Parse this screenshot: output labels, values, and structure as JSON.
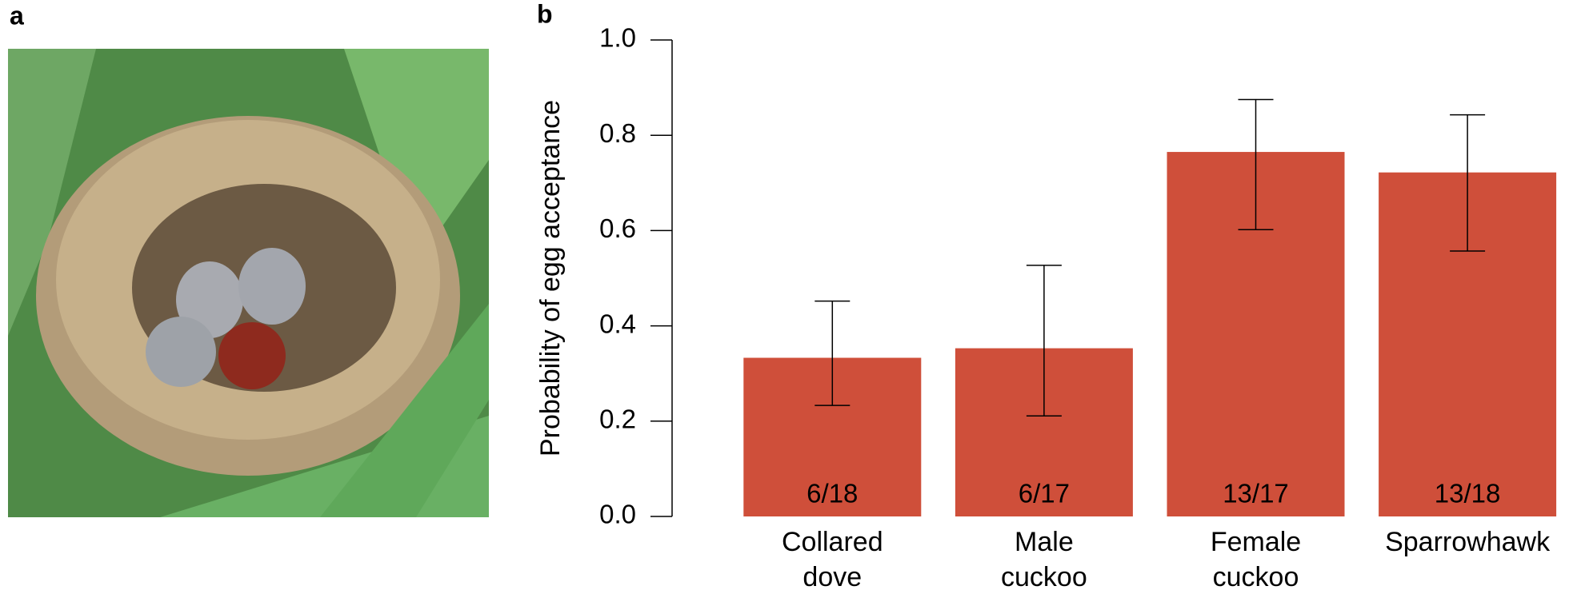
{
  "panel_a_label": "a",
  "chart_data": {
    "type": "bar",
    "panel_label": "b",
    "ylabel": "Probability of egg acceptance",
    "categories": [
      "Collared dove",
      "Male cuckoo",
      "Female cuckoo",
      "Sparrowhawk"
    ],
    "values": [
      0.333,
      0.353,
      0.765,
      0.722
    ],
    "value_labels": [
      "6/18",
      "6/17",
      "13/17",
      "13/18"
    ],
    "error_lower": [
      0.233,
      0.211,
      0.602,
      0.557
    ],
    "error_upper": [
      0.452,
      0.527,
      0.875,
      0.843
    ],
    "color": "#cf4f3a",
    "ylim": [
      0,
      1.0
    ],
    "yticks": [
      {
        "value": 0,
        "label": "0.0"
      },
      {
        "value": 0.2,
        "label": "0.2"
      },
      {
        "value": 0.4,
        "label": "0.4"
      },
      {
        "value": 0.6,
        "label": "0.6"
      },
      {
        "value": 0.8,
        "label": "0.8"
      },
      {
        "value": 1.0,
        "label": "1.0"
      }
    ]
  }
}
